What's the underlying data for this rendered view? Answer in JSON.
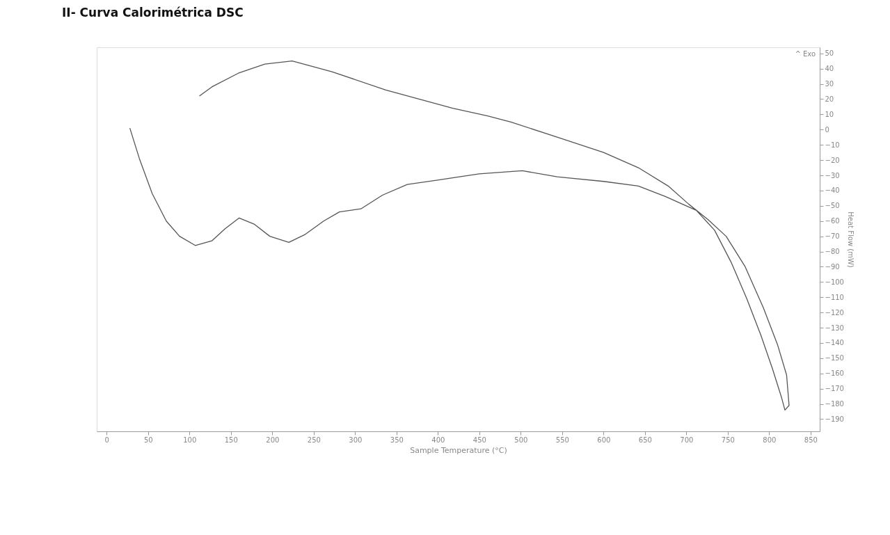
{
  "chart_data": {
    "type": "line",
    "title": "II- Curva Calorimétrica DSC",
    "xlabel": "Sample Temperature (°C)",
    "ylabel": "Heat Flow (mW)",
    "annotations": [
      "^ Exo"
    ],
    "series": [
      {
        "color": "#555555",
        "x": [
          28,
          39.5,
          55,
          72,
          88,
          107,
          127,
          143,
          160,
          178,
          197,
          220,
          239,
          262,
          281,
          307,
          333,
          363,
          401,
          450,
          502,
          544,
          600,
          642,
          675,
          712,
          734,
          754,
          773,
          790,
          804,
          815,
          819,
          824,
          821,
          810,
          793,
          771,
          748,
          726,
          703,
          678,
          642,
          600,
          544,
          488,
          460,
          418,
          337,
          272,
          224,
          191,
          159,
          127,
          112
        ],
        "values": [
          1,
          -19,
          -42,
          -60,
          -70,
          -76,
          -73,
          -65,
          -58,
          -62,
          -70,
          -74,
          -69,
          -60,
          -54,
          -52,
          -43,
          -36,
          -33,
          -29,
          -27,
          -31,
          -34,
          -37,
          -44,
          -53,
          -66,
          -87,
          -111,
          -135,
          -157,
          -176,
          -184,
          -181,
          -161,
          -141,
          -117,
          -90,
          -70,
          -59,
          -49,
          -37,
          -25,
          -15,
          -5,
          5,
          9,
          14,
          26,
          38,
          45,
          43,
          37,
          28,
          22
        ]
      }
    ],
    "xlim": [
      -12,
      861
    ],
    "xticks": [
      0,
      50,
      100,
      150,
      200,
      250,
      300,
      350,
      400,
      450,
      500,
      550,
      600,
      650,
      700,
      750,
      800,
      850
    ],
    "ylim": [
      -198,
      54
    ],
    "yticks": [
      50,
      40,
      30,
      20,
      10,
      0,
      -10,
      -20,
      -30,
      -40,
      -50,
      -60,
      -70,
      -80,
      -90,
      -100,
      -110,
      -120,
      -130,
      -140,
      -150,
      -160,
      -170,
      -180,
      -190
    ],
    "grid": false,
    "marker": "none",
    "line_style": "solid"
  }
}
